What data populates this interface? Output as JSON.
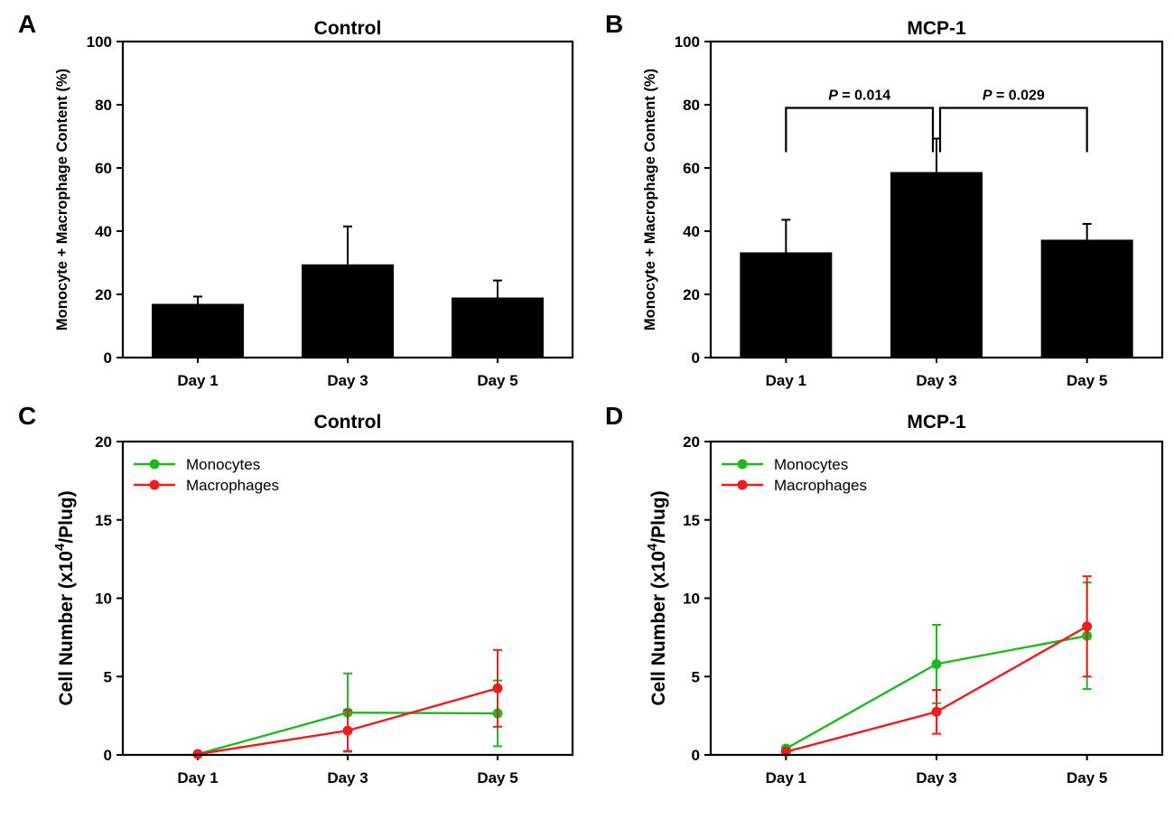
{
  "colors": {
    "bar": "#000000",
    "monocytes": "#1fb81f",
    "macrophages": "#ee1c1c",
    "axis": "#000000"
  },
  "chart_data": [
    {
      "panel_letter": "A",
      "type": "bar",
      "title": "Control",
      "ylabel": "Monocyte + Macrophage Content (%)",
      "xlabel": "",
      "categories": [
        "Day 1",
        "Day 3",
        "Day 5"
      ],
      "values": [
        17,
        29.5,
        19
      ],
      "errors": [
        2.3,
        12,
        5.4
      ],
      "ylim": [
        0,
        100
      ],
      "yticks": [
        0,
        20,
        40,
        60,
        80,
        100
      ],
      "ytick_labels": [
        "0",
        "20",
        "40",
        "60",
        "80",
        "100"
      ],
      "grid": false,
      "annotations": []
    },
    {
      "panel_letter": "B",
      "type": "bar",
      "title": "MCP-1",
      "ylabel": "Monocyte + Macrophage Content (%)",
      "xlabel": "",
      "categories": [
        "Day 1",
        "Day 3",
        "Day 5"
      ],
      "values": [
        33.3,
        58.7,
        37.3
      ],
      "errors": [
        10.3,
        10.6,
        5
      ],
      "ylim": [
        0,
        100
      ],
      "yticks": [
        0,
        20,
        40,
        60,
        80,
        100
      ],
      "ytick_labels": [
        "0",
        "20",
        "40",
        "60",
        "80",
        "100"
      ],
      "grid": false,
      "annotations": [
        {
          "p_label": "P",
          "text": " = 0.014",
          "from": 0,
          "to": 1,
          "level": 79,
          "drop": 65
        },
        {
          "p_label": "P",
          "text": " = 0.029",
          "from": 1,
          "to": 2,
          "level": 79,
          "drop": 65
        }
      ]
    },
    {
      "panel_letter": "C",
      "type": "line",
      "title": "Control",
      "ylabel": "Cell Number (x10",
      "ylabel_sup": "4",
      "ylabel_suffix": "/Plug)",
      "xlabel": "",
      "categories": [
        "Day 1",
        "Day 3",
        "Day 5"
      ],
      "ylim": [
        0,
        20
      ],
      "yticks": [
        0,
        5,
        10,
        15,
        20
      ],
      "ytick_labels": [
        "0",
        "5",
        "10",
        "15",
        "20"
      ],
      "grid": false,
      "legend": "top-left",
      "series": [
        {
          "name": "Monocytes",
          "values": [
            0.05,
            2.7,
            2.65
          ],
          "errors": [
            0,
            2.5,
            2.1
          ]
        },
        {
          "name": "Macrophages",
          "values": [
            0.05,
            1.55,
            4.25
          ],
          "errors": [
            0,
            1.3,
            2.45
          ]
        }
      ]
    },
    {
      "panel_letter": "D",
      "type": "line",
      "title": "MCP-1",
      "ylabel": "Cell Number (x10",
      "ylabel_sup": "4",
      "ylabel_suffix": "/Plug)",
      "xlabel": "",
      "categories": [
        "Day 1",
        "Day 3",
        "Day 5"
      ],
      "ylim": [
        0,
        20
      ],
      "yticks": [
        0,
        5,
        10,
        15,
        20
      ],
      "ytick_labels": [
        "0",
        "5",
        "10",
        "15",
        "20"
      ],
      "grid": false,
      "legend": "top-left",
      "series": [
        {
          "name": "Monocytes",
          "values": [
            0.4,
            5.8,
            7.6
          ],
          "errors": [
            0,
            2.5,
            3.4
          ]
        },
        {
          "name": "Macrophages",
          "values": [
            0.2,
            2.75,
            8.2
          ],
          "errors": [
            0,
            1.4,
            3.2
          ]
        }
      ]
    }
  ]
}
